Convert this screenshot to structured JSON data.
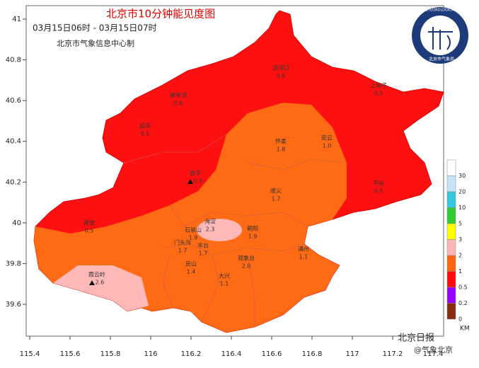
{
  "title": "北京市10分钟能见度图",
  "subtitle": "03月15日06时 - 03月15日07时",
  "producer": "北京市气象信息中心制",
  "logo": {
    "text_en": "BEIJING METEOROLOGICAL SERVICE",
    "text_cn": "北京市气象局"
  },
  "axes": {
    "lon_ticks": [
      115.4,
      115.6,
      115.8,
      116,
      116.2,
      116.4,
      116.6,
      116.8,
      117,
      117.2,
      117.4
    ],
    "lat_ticks": [
      39.6,
      39.8,
      40,
      40.2,
      40.4,
      40.6,
      40.8,
      41
    ]
  },
  "stations": [
    {
      "name": "汤河口",
      "value": 0.6
    },
    {
      "name": "上甸子",
      "value": 0.5
    },
    {
      "name": "佛爷顶",
      "value": 0.6
    },
    {
      "name": "延庆",
      "value": 0.5
    },
    {
      "name": "怀柔",
      "value": 1.8
    },
    {
      "name": "密云",
      "value": 1.0,
      "value_label": "1.0"
    },
    {
      "name": "昌平",
      "value": 0.5
    },
    {
      "name": "平谷",
      "value": 0.5
    },
    {
      "name": "顺义",
      "value": 1.7
    },
    {
      "name": "斋堂",
      "value": 0.5
    },
    {
      "name": "海淀",
      "value": 2.3
    },
    {
      "name": "朝阳",
      "value": 1.9
    },
    {
      "name": "石景山",
      "value": 1.9
    },
    {
      "name": "门头沟",
      "value": 1.7
    },
    {
      "name": "丰台",
      "value": 1.7
    },
    {
      "name": "观象台",
      "value": 2.0,
      "value_label": "2.0"
    },
    {
      "name": "通州",
      "value": 1.1
    },
    {
      "name": "房山",
      "value": 1.4
    },
    {
      "name": "大兴",
      "value": 1.1
    },
    {
      "name": "霞云岭",
      "value": 2.6
    }
  ],
  "legend": {
    "unit": "KM",
    "labels": [
      30,
      20,
      10,
      5,
      3,
      2,
      1,
      0.5,
      0.2,
      0
    ],
    "colors": [
      "#ffffff",
      "#c4e2f8",
      "#33c8e0",
      "#33cc33",
      "#ffff00",
      "#ffb8b8",
      "#ff6610",
      "#ff0a0a",
      "#9a00ff",
      "#8a2a10"
    ]
  },
  "watermark": [
    "北京日报",
    "@气象北京"
  ]
}
